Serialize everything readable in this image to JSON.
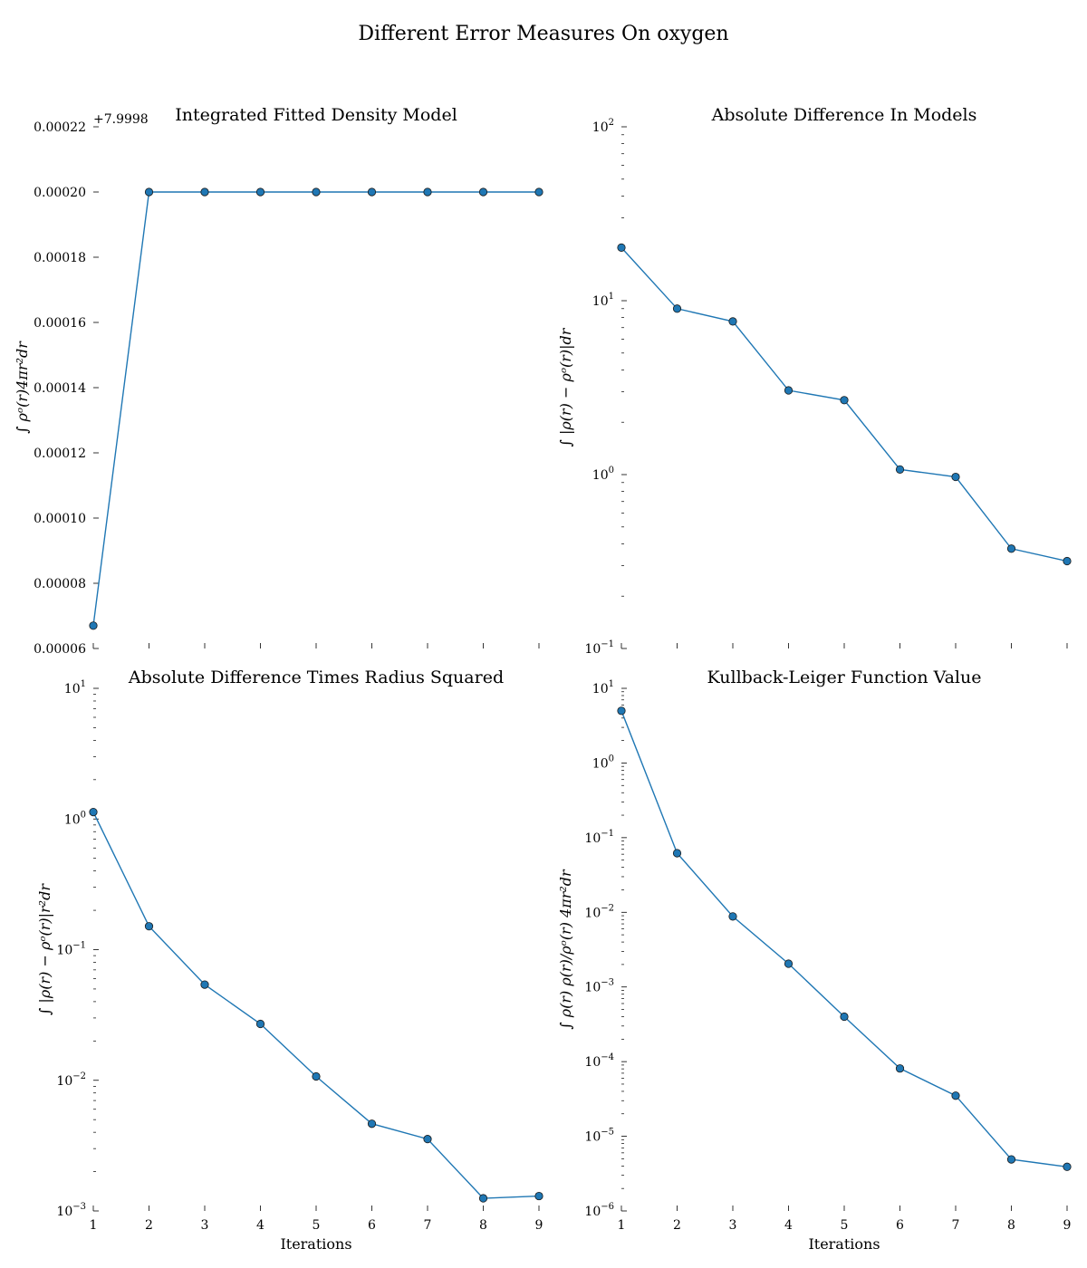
{
  "figure": {
    "title": "Different Error Measures On oxygen"
  },
  "chart_data": [
    {
      "type": "line",
      "title": "Integrated Fitted Density Model",
      "xlabel": "",
      "ylabel": "∫ ρᵒ(r)4πr²dr",
      "y_offset_label": "+7.9998",
      "yscale": "linear",
      "ylim": [
        6e-05,
        0.00022
      ],
      "xlim": [
        1,
        9
      ],
      "x": [
        1,
        2,
        3,
        4,
        5,
        6,
        7,
        8,
        9
      ],
      "x_tick_labels": [
        "",
        "",
        "",
        "",
        "",
        "",
        "",
        "",
        ""
      ],
      "y_ticks": [
        {
          "value": 6e-05,
          "label": "0.00006"
        },
        {
          "value": 8e-05,
          "label": "0.00008"
        },
        {
          "value": 0.0001,
          "label": "0.00010"
        },
        {
          "value": 0.00012,
          "label": "0.00012"
        },
        {
          "value": 0.00014,
          "label": "0.00014"
        },
        {
          "value": 0.00016,
          "label": "0.00016"
        },
        {
          "value": 0.00018,
          "label": "0.00018"
        },
        {
          "value": 0.0002,
          "label": "0.00020"
        },
        {
          "value": 0.00022,
          "label": "0.00022"
        }
      ],
      "series": [
        {
          "values": [
            6.7e-05,
            0.0002,
            0.0002,
            0.0002,
            0.0002,
            0.0002,
            0.0002,
            0.0002,
            0.0002
          ],
          "color": "#1f77b4"
        }
      ]
    },
    {
      "type": "line",
      "title": "Absolute Difference In Models",
      "xlabel": "",
      "ylabel": "∫ |ρ(r) − ρᵒ(r)|dr",
      "yscale": "log",
      "ylim": [
        0.1,
        100
      ],
      "xlim": [
        1,
        9
      ],
      "x": [
        1,
        2,
        3,
        4,
        5,
        6,
        7,
        8,
        9
      ],
      "x_tick_labels": [
        "",
        "",
        "",
        "",
        "",
        "",
        "",
        "",
        ""
      ],
      "y_ticks": [
        {
          "value": 0.1,
          "base": "10",
          "exp": "−1"
        },
        {
          "value": 1,
          "base": "10",
          "exp": "0"
        },
        {
          "value": 10,
          "base": "10",
          "exp": "1"
        },
        {
          "value": 100,
          "base": "10",
          "exp": "2"
        }
      ],
      "series": [
        {
          "values": [
            20.2,
            9.0,
            7.6,
            3.05,
            2.68,
            1.07,
            0.97,
            0.375,
            0.318
          ],
          "color": "#1f77b4"
        }
      ]
    },
    {
      "type": "line",
      "title": "Absolute Difference Times Radius Squared",
      "xlabel": "Iterations",
      "ylabel": "∫ |ρ(r) − ρᵒ(r)|r²dr",
      "yscale": "log",
      "ylim": [
        0.001,
        10
      ],
      "xlim": [
        1,
        9
      ],
      "x": [
        1,
        2,
        3,
        4,
        5,
        6,
        7,
        8,
        9
      ],
      "x_tick_labels": [
        "1",
        "2",
        "3",
        "4",
        "5",
        "6",
        "7",
        "8",
        "9"
      ],
      "y_ticks": [
        {
          "value": 0.001,
          "base": "10",
          "exp": "−3"
        },
        {
          "value": 0.01,
          "base": "10",
          "exp": "−2"
        },
        {
          "value": 0.1,
          "base": "10",
          "exp": "−1"
        },
        {
          "value": 1,
          "base": "10",
          "exp": "0"
        },
        {
          "value": 10,
          "base": "10",
          "exp": "1"
        }
      ],
      "series": [
        {
          "values": [
            1.13,
            0.151,
            0.054,
            0.027,
            0.0107,
            0.00465,
            0.00355,
            0.00125,
            0.0013
          ],
          "color": "#1f77b4"
        }
      ]
    },
    {
      "type": "line",
      "title": "Kullback-Leiger Function Value",
      "xlabel": "Iterations",
      "ylabel": "∫ ρ(r) ρ(r)/ρᵒ(r) 4πr²dr",
      "yscale": "log",
      "ylim": [
        1e-06,
        10
      ],
      "xlim": [
        1,
        9
      ],
      "x": [
        1,
        2,
        3,
        4,
        5,
        6,
        7,
        8,
        9
      ],
      "x_tick_labels": [
        "1",
        "2",
        "3",
        "4",
        "5",
        "6",
        "7",
        "8",
        "9"
      ],
      "y_ticks": [
        {
          "value": 1e-06,
          "base": "10",
          "exp": "−6"
        },
        {
          "value": 1e-05,
          "base": "10",
          "exp": "−5"
        },
        {
          "value": 0.0001,
          "base": "10",
          "exp": "−4"
        },
        {
          "value": 0.001,
          "base": "10",
          "exp": "−3"
        },
        {
          "value": 0.01,
          "base": "10",
          "exp": "−2"
        },
        {
          "value": 0.1,
          "base": "10",
          "exp": "−1"
        },
        {
          "value": 1,
          "base": "10",
          "exp": "0"
        },
        {
          "value": 10,
          "base": "10",
          "exp": "1"
        }
      ],
      "series": [
        {
          "values": [
            5.0,
            0.062,
            0.0088,
            0.00205,
            0.0004,
            8.1e-05,
            3.5e-05,
            4.9e-06,
            3.9e-06
          ],
          "color": "#1f77b4"
        }
      ]
    }
  ]
}
